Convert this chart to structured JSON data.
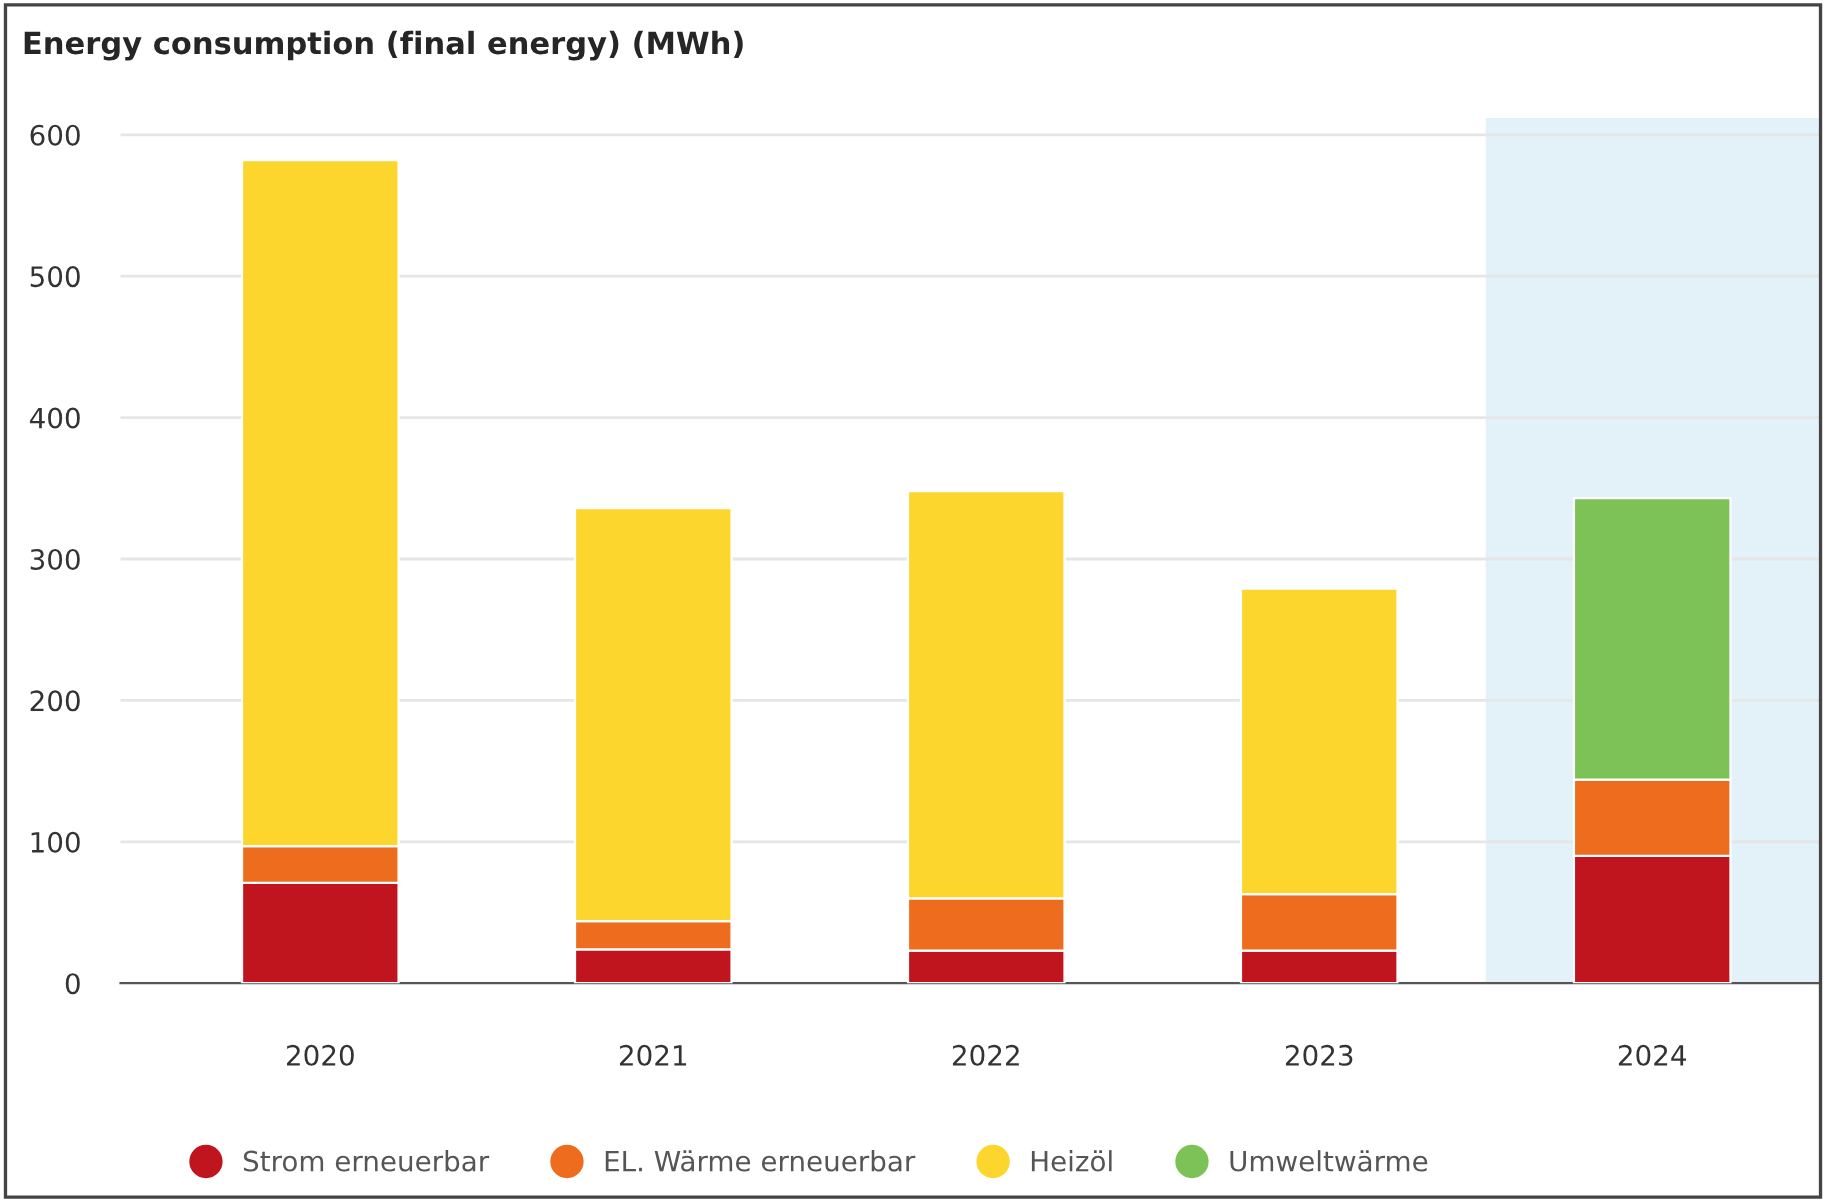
{
  "chart_data": {
    "type": "bar",
    "title": "Energy consumption (final energy) (MWh)",
    "categories": [
      "2020",
      "2021",
      "2022",
      "2023",
      "2024"
    ],
    "stacked": true,
    "series": [
      {
        "name": "Strom erneuerbar",
        "color": "#c0141f",
        "values": [
          71,
          24,
          23,
          23,
          90
        ]
      },
      {
        "name": "EL. Wärme erneuerbar",
        "color": "#ee6c1e",
        "values": [
          26,
          20,
          37,
          40,
          54
        ]
      },
      {
        "name": "Heizöl",
        "color": "#fcd62c",
        "values": [
          485,
          292,
          288,
          216,
          null
        ]
      },
      {
        "name": "Umweltwärme",
        "color": "#7cc257",
        "values": [
          null,
          null,
          null,
          null,
          199
        ]
      }
    ],
    "ylim": [
      0,
      612
    ],
    "yticks": [
      0,
      100,
      200,
      300,
      400,
      500,
      600
    ],
    "bands": [
      {
        "axis": "x",
        "from": "2024",
        "to": "2024",
        "color": "#e3f1f8"
      }
    ],
    "grid": "y",
    "legend": "bottom"
  }
}
